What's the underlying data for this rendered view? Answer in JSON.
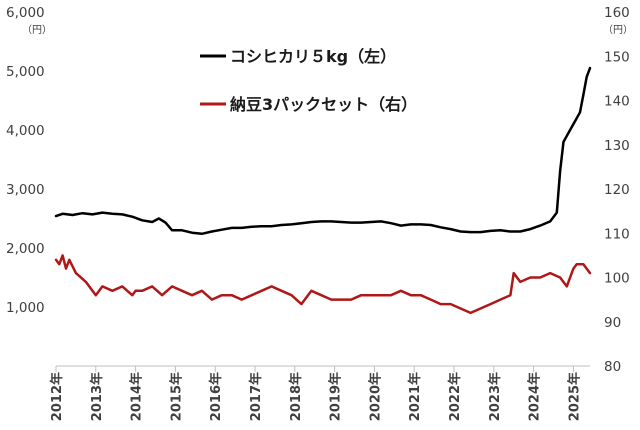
{
  "chart_data": {
    "type": "line",
    "x_axis": {
      "labels": [
        "2012年",
        "2013年",
        "2014年",
        "2015年",
        "2016年",
        "2017年",
        "2018年",
        "2019年",
        "2020年",
        "2021年",
        "2022年",
        "2023年",
        "2024年",
        "2025年"
      ],
      "range": [
        "2012-01",
        "2025-06"
      ]
    },
    "y_left": {
      "unit": "（円）",
      "min": 0,
      "max": 6000,
      "ticks": [
        "1,000",
        "2,000",
        "3,000",
        "4,000",
        "5,000",
        "6,000"
      ],
      "tick_values": [
        1000,
        2000,
        3000,
        4000,
        5000,
        6000
      ]
    },
    "y_right": {
      "unit": "（円）",
      "min": 80,
      "max": 160,
      "ticks": [
        "80",
        "90",
        "100",
        "110",
        "120",
        "130",
        "140",
        "150",
        "160"
      ],
      "tick_values": [
        80,
        90,
        100,
        110,
        120,
        130,
        140,
        150,
        160
      ]
    },
    "grid": false,
    "legend_position": "top-center",
    "series": [
      {
        "name": "コシヒカリ５kg（左）",
        "axis": "left",
        "color": "#000000",
        "points": [
          [
            "2012-01",
            2540
          ],
          [
            "2012-03",
            2580
          ],
          [
            "2012-06",
            2560
          ],
          [
            "2012-09",
            2590
          ],
          [
            "2012-12",
            2570
          ],
          [
            "2013-03",
            2600
          ],
          [
            "2013-06",
            2580
          ],
          [
            "2013-09",
            2570
          ],
          [
            "2013-12",
            2530
          ],
          [
            "2014-03",
            2470
          ],
          [
            "2014-06",
            2440
          ],
          [
            "2014-08",
            2500
          ],
          [
            "2014-10",
            2430
          ],
          [
            "2014-12",
            2300
          ],
          [
            "2015-03",
            2300
          ],
          [
            "2015-06",
            2260
          ],
          [
            "2015-09",
            2240
          ],
          [
            "2015-12",
            2280
          ],
          [
            "2016-03",
            2310
          ],
          [
            "2016-06",
            2340
          ],
          [
            "2016-09",
            2340
          ],
          [
            "2016-12",
            2360
          ],
          [
            "2017-03",
            2370
          ],
          [
            "2017-06",
            2370
          ],
          [
            "2017-09",
            2390
          ],
          [
            "2017-12",
            2400
          ],
          [
            "2018-03",
            2420
          ],
          [
            "2018-06",
            2440
          ],
          [
            "2018-09",
            2450
          ],
          [
            "2018-12",
            2450
          ],
          [
            "2019-03",
            2440
          ],
          [
            "2019-06",
            2430
          ],
          [
            "2019-09",
            2430
          ],
          [
            "2019-12",
            2440
          ],
          [
            "2020-03",
            2450
          ],
          [
            "2020-06",
            2420
          ],
          [
            "2020-09",
            2380
          ],
          [
            "2020-12",
            2400
          ],
          [
            "2021-03",
            2400
          ],
          [
            "2021-06",
            2390
          ],
          [
            "2021-09",
            2350
          ],
          [
            "2021-12",
            2320
          ],
          [
            "2022-03",
            2280
          ],
          [
            "2022-06",
            2270
          ],
          [
            "2022-09",
            2270
          ],
          [
            "2022-12",
            2290
          ],
          [
            "2023-03",
            2300
          ],
          [
            "2023-06",
            2280
          ],
          [
            "2023-09",
            2280
          ],
          [
            "2023-12",
            2320
          ],
          [
            "2024-03",
            2380
          ],
          [
            "2024-06",
            2450
          ],
          [
            "2024-08",
            2600
          ],
          [
            "2024-09",
            3300
          ],
          [
            "2024-10",
            3800
          ],
          [
            "2024-12",
            4000
          ],
          [
            "2025-01",
            4100
          ],
          [
            "2025-03",
            4300
          ],
          [
            "2025-04",
            4600
          ],
          [
            "2025-05",
            4900
          ],
          [
            "2025-06",
            5050
          ]
        ]
      },
      {
        "name": "納豆3パックセット（右）",
        "axis": "right",
        "color": "#b01818",
        "points": [
          [
            "2012-01",
            104
          ],
          [
            "2012-02",
            103
          ],
          [
            "2012-03",
            105
          ],
          [
            "2012-04",
            102
          ],
          [
            "2012-05",
            104
          ],
          [
            "2012-07",
            101
          ],
          [
            "2012-10",
            99
          ],
          [
            "2013-01",
            96
          ],
          [
            "2013-03",
            98
          ],
          [
            "2013-06",
            97
          ],
          [
            "2013-09",
            98
          ],
          [
            "2013-12",
            96
          ],
          [
            "2014-01",
            97
          ],
          [
            "2014-03",
            97
          ],
          [
            "2014-06",
            98
          ],
          [
            "2014-09",
            96
          ],
          [
            "2014-12",
            98
          ],
          [
            "2015-03",
            97
          ],
          [
            "2015-06",
            96
          ],
          [
            "2015-09",
            97
          ],
          [
            "2015-12",
            95
          ],
          [
            "2016-03",
            96
          ],
          [
            "2016-06",
            96
          ],
          [
            "2016-09",
            95
          ],
          [
            "2016-12",
            96
          ],
          [
            "2017-03",
            97
          ],
          [
            "2017-06",
            98
          ],
          [
            "2017-09",
            97
          ],
          [
            "2017-12",
            96
          ],
          [
            "2018-03",
            94
          ],
          [
            "2018-06",
            97
          ],
          [
            "2018-09",
            96
          ],
          [
            "2018-12",
            95
          ],
          [
            "2019-03",
            95
          ],
          [
            "2019-06",
            95
          ],
          [
            "2019-09",
            96
          ],
          [
            "2019-12",
            96
          ],
          [
            "2020-03",
            96
          ],
          [
            "2020-06",
            96
          ],
          [
            "2020-09",
            97
          ],
          [
            "2020-12",
            96
          ],
          [
            "2021-03",
            96
          ],
          [
            "2021-06",
            95
          ],
          [
            "2021-09",
            94
          ],
          [
            "2021-12",
            94
          ],
          [
            "2022-03",
            93
          ],
          [
            "2022-06",
            92
          ],
          [
            "2022-09",
            93
          ],
          [
            "2022-12",
            94
          ],
          [
            "2023-03",
            95
          ],
          [
            "2023-06",
            96
          ],
          [
            "2023-07",
            101
          ],
          [
            "2023-09",
            99
          ],
          [
            "2023-12",
            100
          ],
          [
            "2024-03",
            100
          ],
          [
            "2024-06",
            101
          ],
          [
            "2024-09",
            100
          ],
          [
            "2024-11",
            98
          ],
          [
            "2025-01",
            102
          ],
          [
            "2025-02",
            103
          ],
          [
            "2025-04",
            103
          ],
          [
            "2025-06",
            101
          ]
        ]
      }
    ]
  }
}
